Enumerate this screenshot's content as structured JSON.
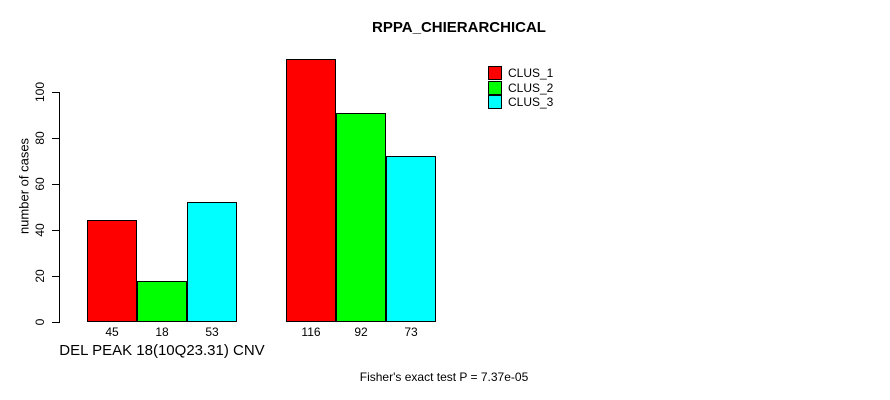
{
  "chart_data": {
    "type": "bar",
    "grouped": true,
    "title": "RPPA_CHIERARCHICAL",
    "ylabel": "number of cases",
    "categories": [
      "DEL PEAK 18(10Q23.31) CNV",
      ""
    ],
    "series": [
      {
        "name": "CLUS_1",
        "color": "#ff0000",
        "values": [
          45,
          116
        ]
      },
      {
        "name": "CLUS_2",
        "color": "#00ff00",
        "values": [
          18,
          92
        ]
      },
      {
        "name": "CLUS_3",
        "color": "#00ffff",
        "values": [
          53,
          73
        ]
      }
    ],
    "bar_value_labels": [
      [
        "45",
        "18",
        "53"
      ],
      [
        "116",
        "92",
        "73"
      ]
    ],
    "yticks": [
      0,
      20,
      40,
      60,
      80,
      100
    ],
    "ylim": [
      0,
      116
    ],
    "grid": false,
    "legend_position": "top-right",
    "annotation": "Fisher's exact test P = 7.37e-05",
    "axis_color": "#000000",
    "background_color": "#ffffff"
  }
}
